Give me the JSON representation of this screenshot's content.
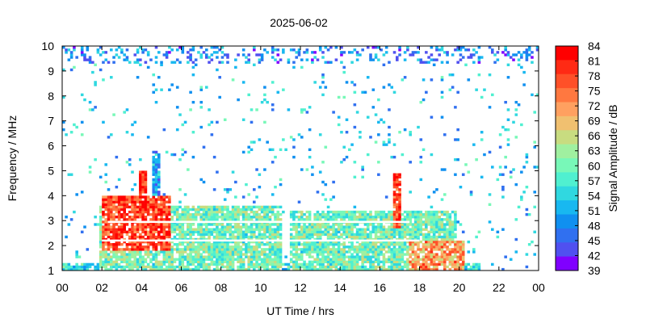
{
  "chart_data": {
    "type": "heatmap",
    "title": "2025-06-02",
    "xlabel": "UT Time / hrs",
    "ylabel": "Frequency / MHz",
    "colorbar_label": "Signal Amplitude / dB",
    "xlim": [
      0,
      24
    ],
    "ylim": [
      1,
      10
    ],
    "x_ticks": [
      "00",
      "02",
      "04",
      "06",
      "08",
      "10",
      "12",
      "14",
      "16",
      "18",
      "20",
      "22",
      "00"
    ],
    "y_ticks": [
      "1",
      "2",
      "3",
      "4",
      "5",
      "6",
      "7",
      "8",
      "9",
      "10"
    ],
    "colorbar_ticks": [
      "84",
      "81",
      "78",
      "75",
      "72",
      "69",
      "66",
      "63",
      "60",
      "57",
      "54",
      "51",
      "48",
      "45",
      "42",
      "39"
    ],
    "colorbar_range": [
      39,
      84
    ],
    "colorbar_colors": [
      "#ff0000",
      "#ff2a14",
      "#ff5028",
      "#ff7840",
      "#ffa060",
      "#f0c070",
      "#c8dc80",
      "#a0f0a0",
      "#78f8b8",
      "#50f0d0",
      "#30d8e0",
      "#18b8f0",
      "#1090f0",
      "#3070f0",
      "#5050f0",
      "#8000ff"
    ],
    "regions": [
      {
        "name": "daytime band (0-12h)",
        "t0": 1.9,
        "t1": 11.0,
        "f_low": 1.0,
        "f_high": 3.6,
        "level": 60
      },
      {
        "name": "daytime band (12-24h)",
        "t0": 11.5,
        "t1": 19.8,
        "f_low": 1.0,
        "f_high": 3.4,
        "level": 60
      },
      {
        "name": "strong edge morning",
        "t0": 2.0,
        "t1": 5.5,
        "f_low": 1.8,
        "f_high": 4.0,
        "level": 78
      },
      {
        "name": "spike 04h",
        "t0": 3.9,
        "t1": 4.3,
        "f_low": 3.0,
        "f_high": 5.0,
        "level": 80
      },
      {
        "name": "spike 04:40h",
        "t0": 4.6,
        "t1": 4.9,
        "f_low": 3.0,
        "f_high": 5.8,
        "level": 50
      },
      {
        "name": "spike 17h",
        "t0": 16.7,
        "t1": 17.1,
        "f_low": 2.7,
        "f_high": 4.9,
        "level": 78
      },
      {
        "name": "evening edge",
        "t0": 17.5,
        "t1": 20.2,
        "f_low": 1.0,
        "f_high": 2.2,
        "level": 72
      },
      {
        "name": "low band",
        "t0": 0.0,
        "t1": 21.0,
        "f_low": 1.0,
        "f_high": 1.3,
        "level": 55
      },
      {
        "name": "top noise",
        "t0": 0.0,
        "t1": 24.0,
        "f_low": 9.3,
        "f_high": 10.0,
        "level": 48
      }
    ],
    "gaps": [
      {
        "f": 2.2,
        "t0": 2.0,
        "t1": 18.0
      },
      {
        "f": 2.95,
        "t0": 2.3,
        "t1": 17.5
      }
    ]
  }
}
